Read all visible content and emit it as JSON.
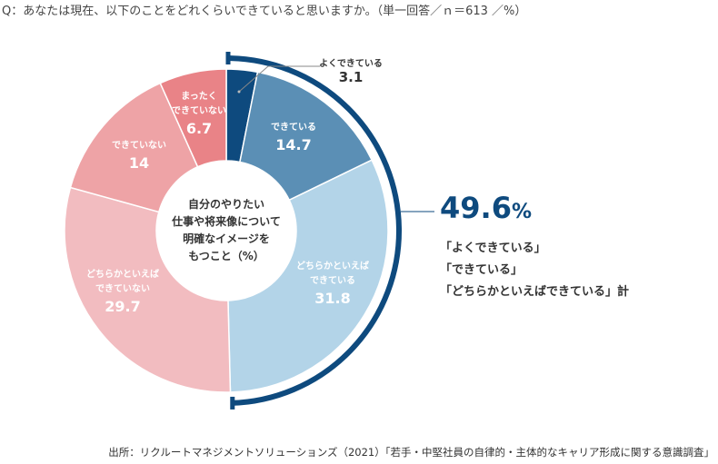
{
  "title": "Q：あなたは現在、以下のことをどれくらいできていると思いますか。（単一回答／ｎ＝613 ／%）",
  "source": "出所：リクルートマネジメントソリューションズ（2021）「若手・中堅社員の自律的・主体的なキャリア形成に関する意識調査」",
  "chart_data": {
    "type": "pie",
    "donut": true,
    "center_label": [
      "自分のやりたい",
      "仕事や将来像について",
      "明確なイメージを",
      "もつこと（%）"
    ],
    "categories": [
      "よくできている",
      "できている",
      "どちらかといえばできている",
      "どちらかといえばできていない",
      "できていない",
      "まったくできていない"
    ],
    "values": [
      3.1,
      14.7,
      31.8,
      29.7,
      14.0,
      6.7
    ],
    "colors": [
      "#0e4a7e",
      "#5b8fb5",
      "#b3d4e8",
      "#f2bcc0",
      "#eea3a6",
      "#e98387"
    ],
    "annotation": {
      "value": "49.6",
      "unit": "%",
      "lines": [
        "「よくできている」",
        "「できている」",
        "「どちらかといえばできている」計"
      ]
    }
  }
}
